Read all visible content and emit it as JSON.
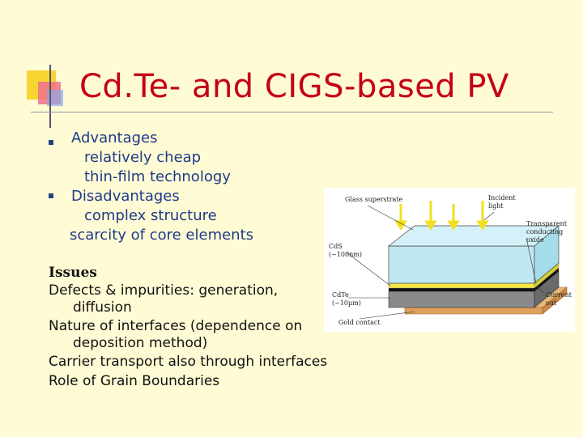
{
  "slide": {
    "title": "Cd.Te- and CIGS-based PV",
    "bullets": [
      {
        "label": "Advantages",
        "sub": [
          "relatively cheap",
          "thin-film technology"
        ]
      },
      {
        "label": "Disadvantages",
        "sub": [
          "complex structure",
          "scarcity of core elements"
        ]
      }
    ],
    "issues": {
      "heading": "Issues",
      "lines": [
        "Defects & impurities: generation,",
        "diffusion",
        "Nature of interfaces (dependence on",
        "deposition method)",
        "Carrier transport also through interfaces",
        "Role of Grain Boundaries"
      ]
    }
  },
  "diagram": {
    "labels": {
      "glass": "Glass superstrate",
      "incident": "Incident light",
      "tco": "Transparent conducting oxide",
      "cds": "CdS (~100nm)",
      "cdte": "CdTe (~10µm)",
      "current": "Current out",
      "gold": "Gold contact"
    }
  },
  "colors": {
    "title": "#c40016",
    "text": "#1f3a8a",
    "background": "#fffbd5"
  }
}
